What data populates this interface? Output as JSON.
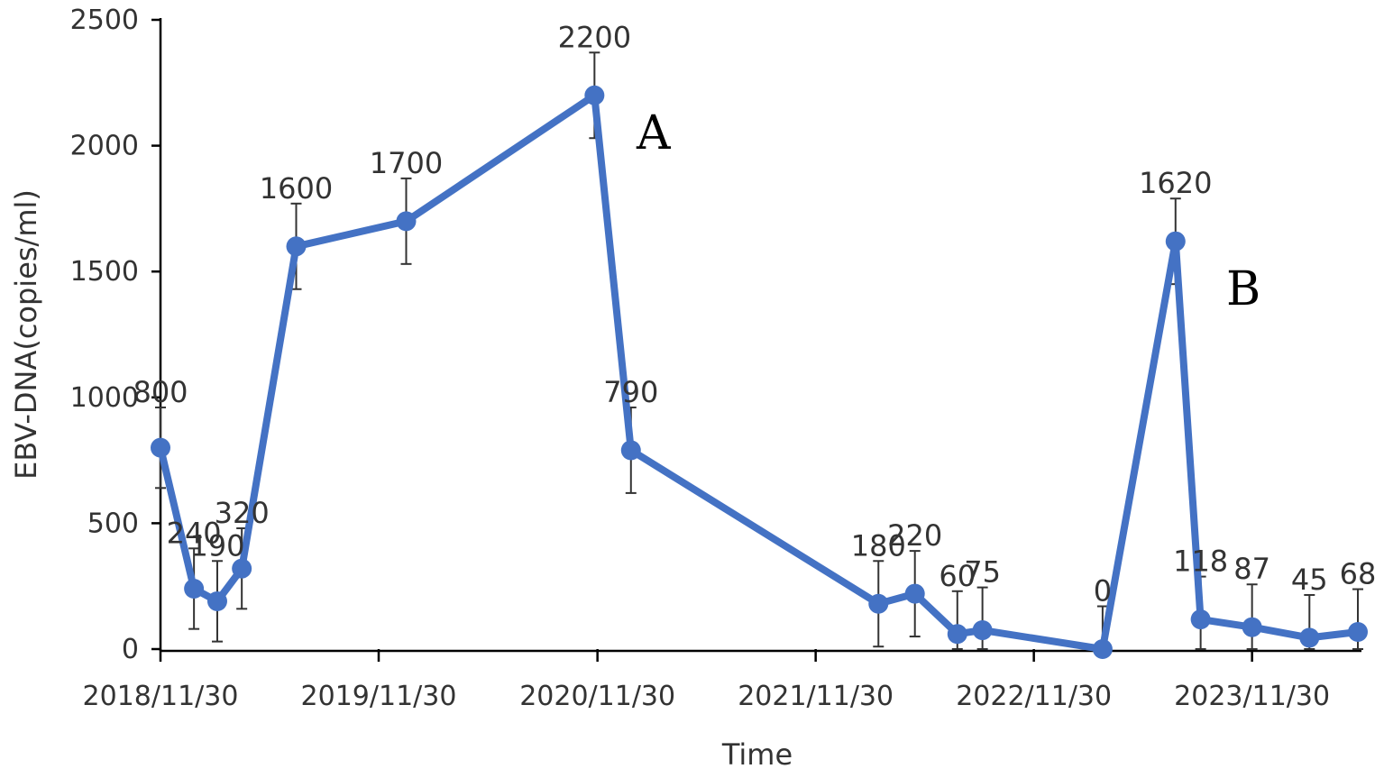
{
  "chart_data": {
    "type": "line",
    "xlabel": "Time",
    "ylabel": "EBV-DNA(copies/ml)",
    "ylim": [
      0,
      2500
    ],
    "y_ticks": [
      "0",
      "500",
      "1000",
      "1500",
      "2000",
      "2500"
    ],
    "x_ticks": [
      "2018/11/30",
      "2019/11/30",
      "2020/11/30",
      "2021/11/30",
      "2022/11/30",
      "2023/11/30"
    ],
    "grid": false,
    "color": "#4472C4",
    "series": [
      {
        "x": [
          "2018/11/30",
          "2019/01/25",
          "2019/03/05",
          "2019/04/15",
          "2019/07/15",
          "2020/01/15",
          "2020/11/25",
          "2021/01/25",
          "2022/03/15",
          "2022/05/15",
          "2022/07/25",
          "2022/09/05",
          "2023/03/25",
          "2023/07/25",
          "2023/09/05",
          "2023/11/30",
          "2024/03/05",
          "2024/05/25"
        ],
        "values": [
          800,
          240,
          190,
          320,
          1600,
          1700,
          2200,
          790,
          180,
          220,
          60,
          75,
          0,
          1620,
          118,
          87,
          45,
          68
        ],
        "labels": [
          "800",
          "240",
          "190",
          "320",
          "1600",
          "1700",
          "2200",
          "790",
          "180",
          "220",
          "60",
          "75",
          "0",
          "1620",
          "118",
          "87",
          "45",
          "68"
        ],
        "error": [
          160,
          160,
          160,
          160,
          170,
          170,
          170,
          170,
          170,
          170,
          170,
          170,
          170,
          170,
          170,
          170,
          170,
          170
        ]
      }
    ],
    "annotations": [
      "A",
      "B"
    ]
  }
}
